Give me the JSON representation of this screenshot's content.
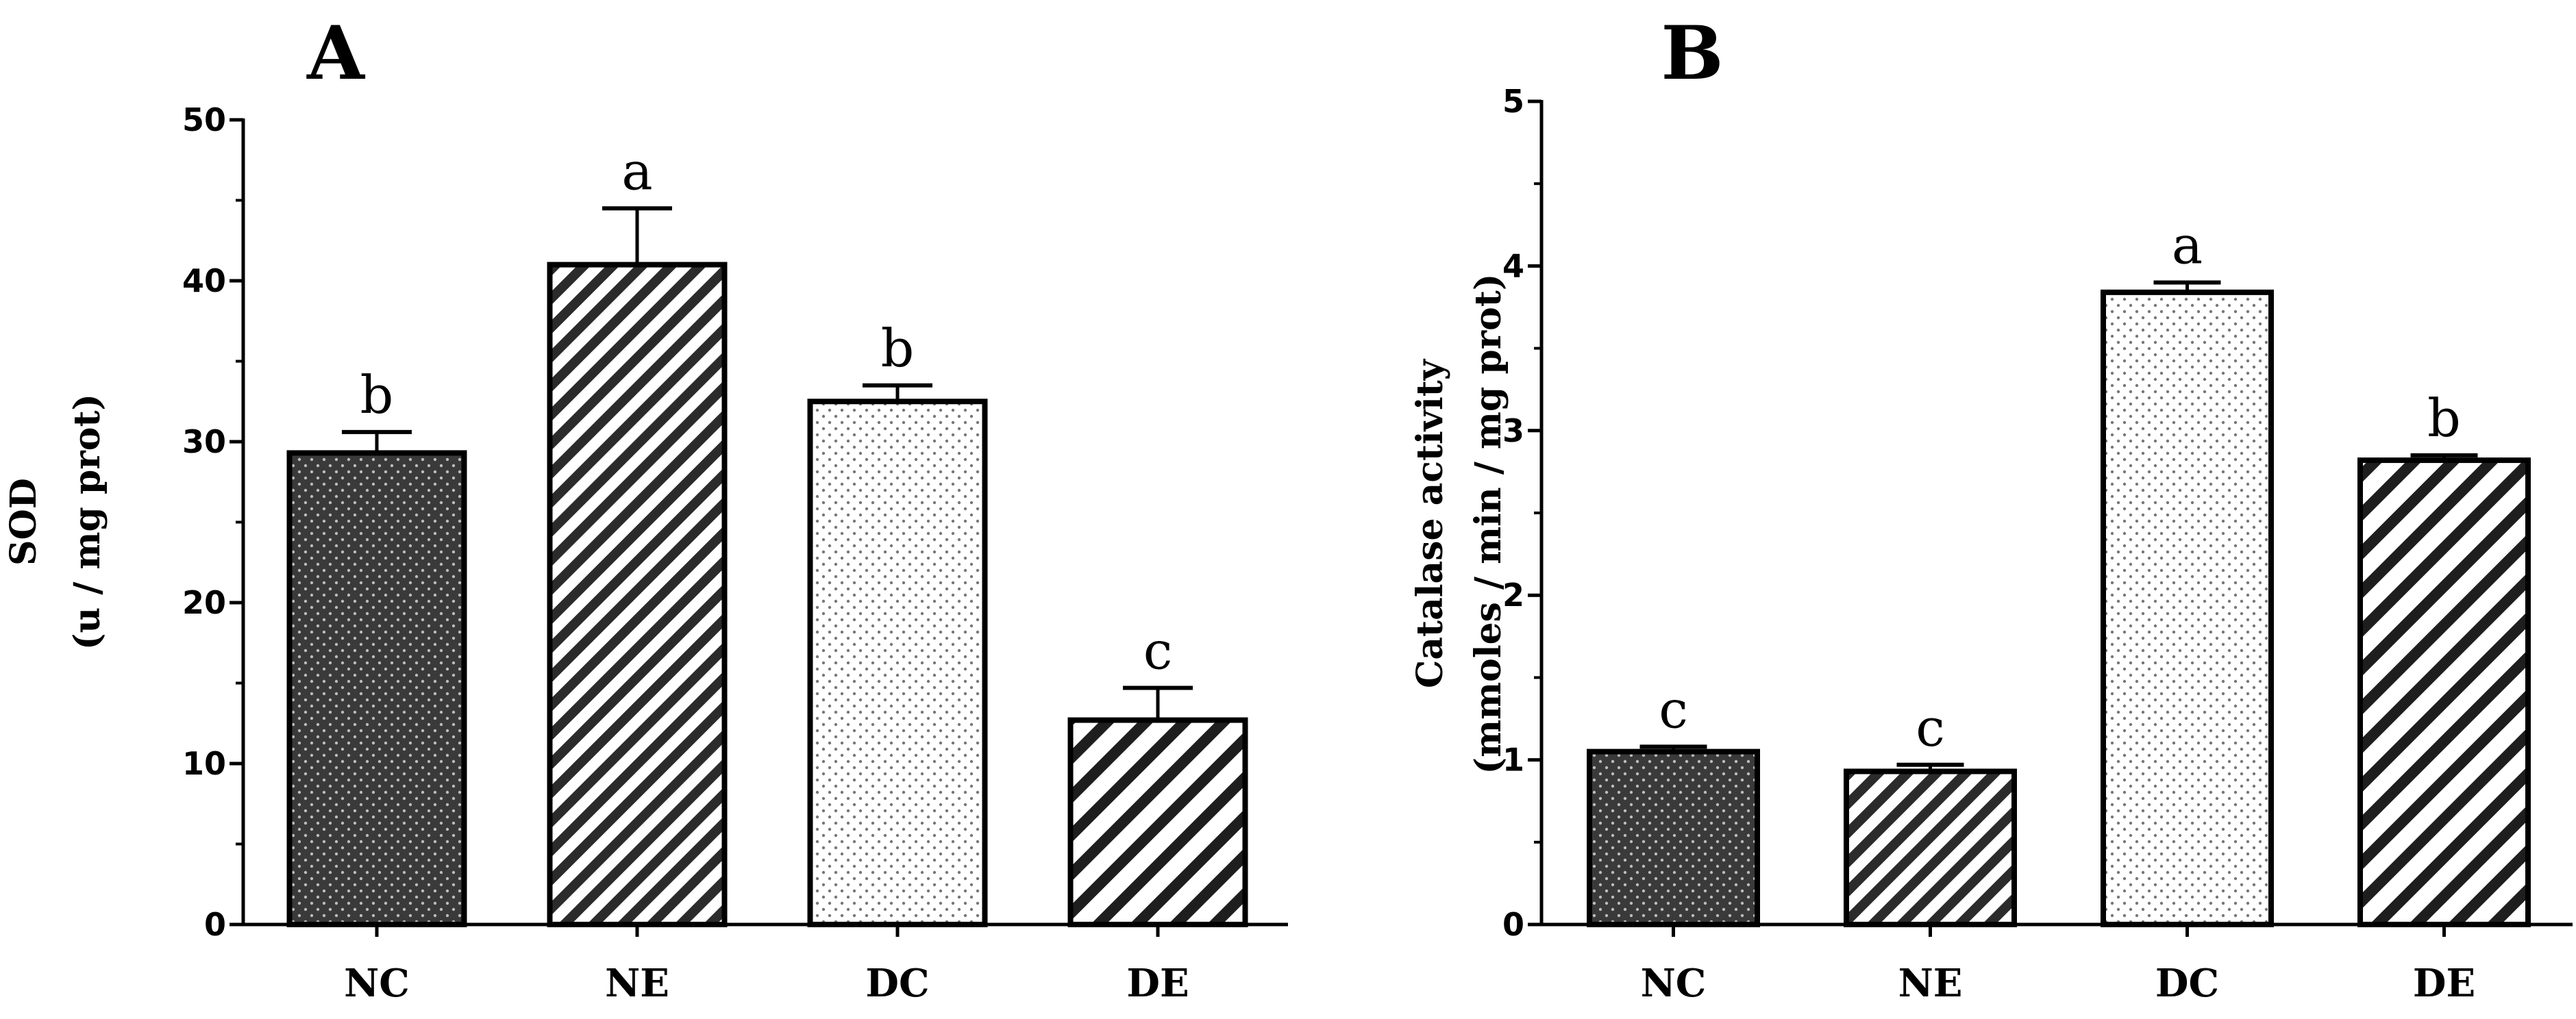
{
  "figure": {
    "panels": [
      "A",
      "B"
    ]
  },
  "chart_data": [
    {
      "type": "bar",
      "panel_label": "A",
      "categories": [
        "NC",
        "NE",
        "DC",
        "DE"
      ],
      "values": [
        29.3,
        41.0,
        32.5,
        12.7
      ],
      "errors": [
        1.3,
        3.5,
        1.0,
        2.0
      ],
      "significance_letters": [
        "b",
        "a",
        "b",
        "c"
      ],
      "fill_patterns": [
        "dark-dotted",
        "diagonal-hatch-dense",
        "light-dotted",
        "diagonal-hatch-wide"
      ],
      "ylabel": "SOD",
      "ylabel_unit": "(u / mg prot)",
      "xlabel": "",
      "ylim": [
        0,
        50
      ],
      "yticks": [
        "0",
        "10",
        "20",
        "30",
        "40",
        "50"
      ],
      "ytick_values": [
        0,
        10,
        20,
        30,
        40,
        50
      ],
      "minor_tick_step": 5,
      "grid": false,
      "legend": "none"
    },
    {
      "type": "bar",
      "panel_label": "B",
      "categories": [
        "NC",
        "NE",
        "DC",
        "DE"
      ],
      "values": [
        1.05,
        0.93,
        3.84,
        2.82
      ],
      "errors": [
        0.03,
        0.04,
        0.06,
        0.03
      ],
      "significance_letters": [
        "c",
        "c",
        "a",
        "b"
      ],
      "fill_patterns": [
        "dark-dotted",
        "diagonal-hatch-dense",
        "light-dotted",
        "diagonal-hatch-wide"
      ],
      "ylabel": "Catalase activity",
      "ylabel_unit": "(mmoles / min / mg prot)",
      "xlabel": "",
      "ylim": [
        0,
        5
      ],
      "yticks": [
        "0",
        "1",
        "2",
        "3",
        "4",
        "5"
      ],
      "ytick_values": [
        0,
        1,
        2,
        3,
        4,
        5
      ],
      "minor_tick_step": 0.5,
      "grid": false,
      "legend": "none"
    }
  ],
  "colors": {
    "axis": "#000000",
    "bar_outline": "#000000",
    "dark_fill": "#3a3a3a",
    "dark_dot": "#bdbdbd",
    "light_fill": "#ffffff",
    "light_dot": "#777777",
    "hatch_line": "#2b2b2b",
    "background": "#ffffff"
  }
}
